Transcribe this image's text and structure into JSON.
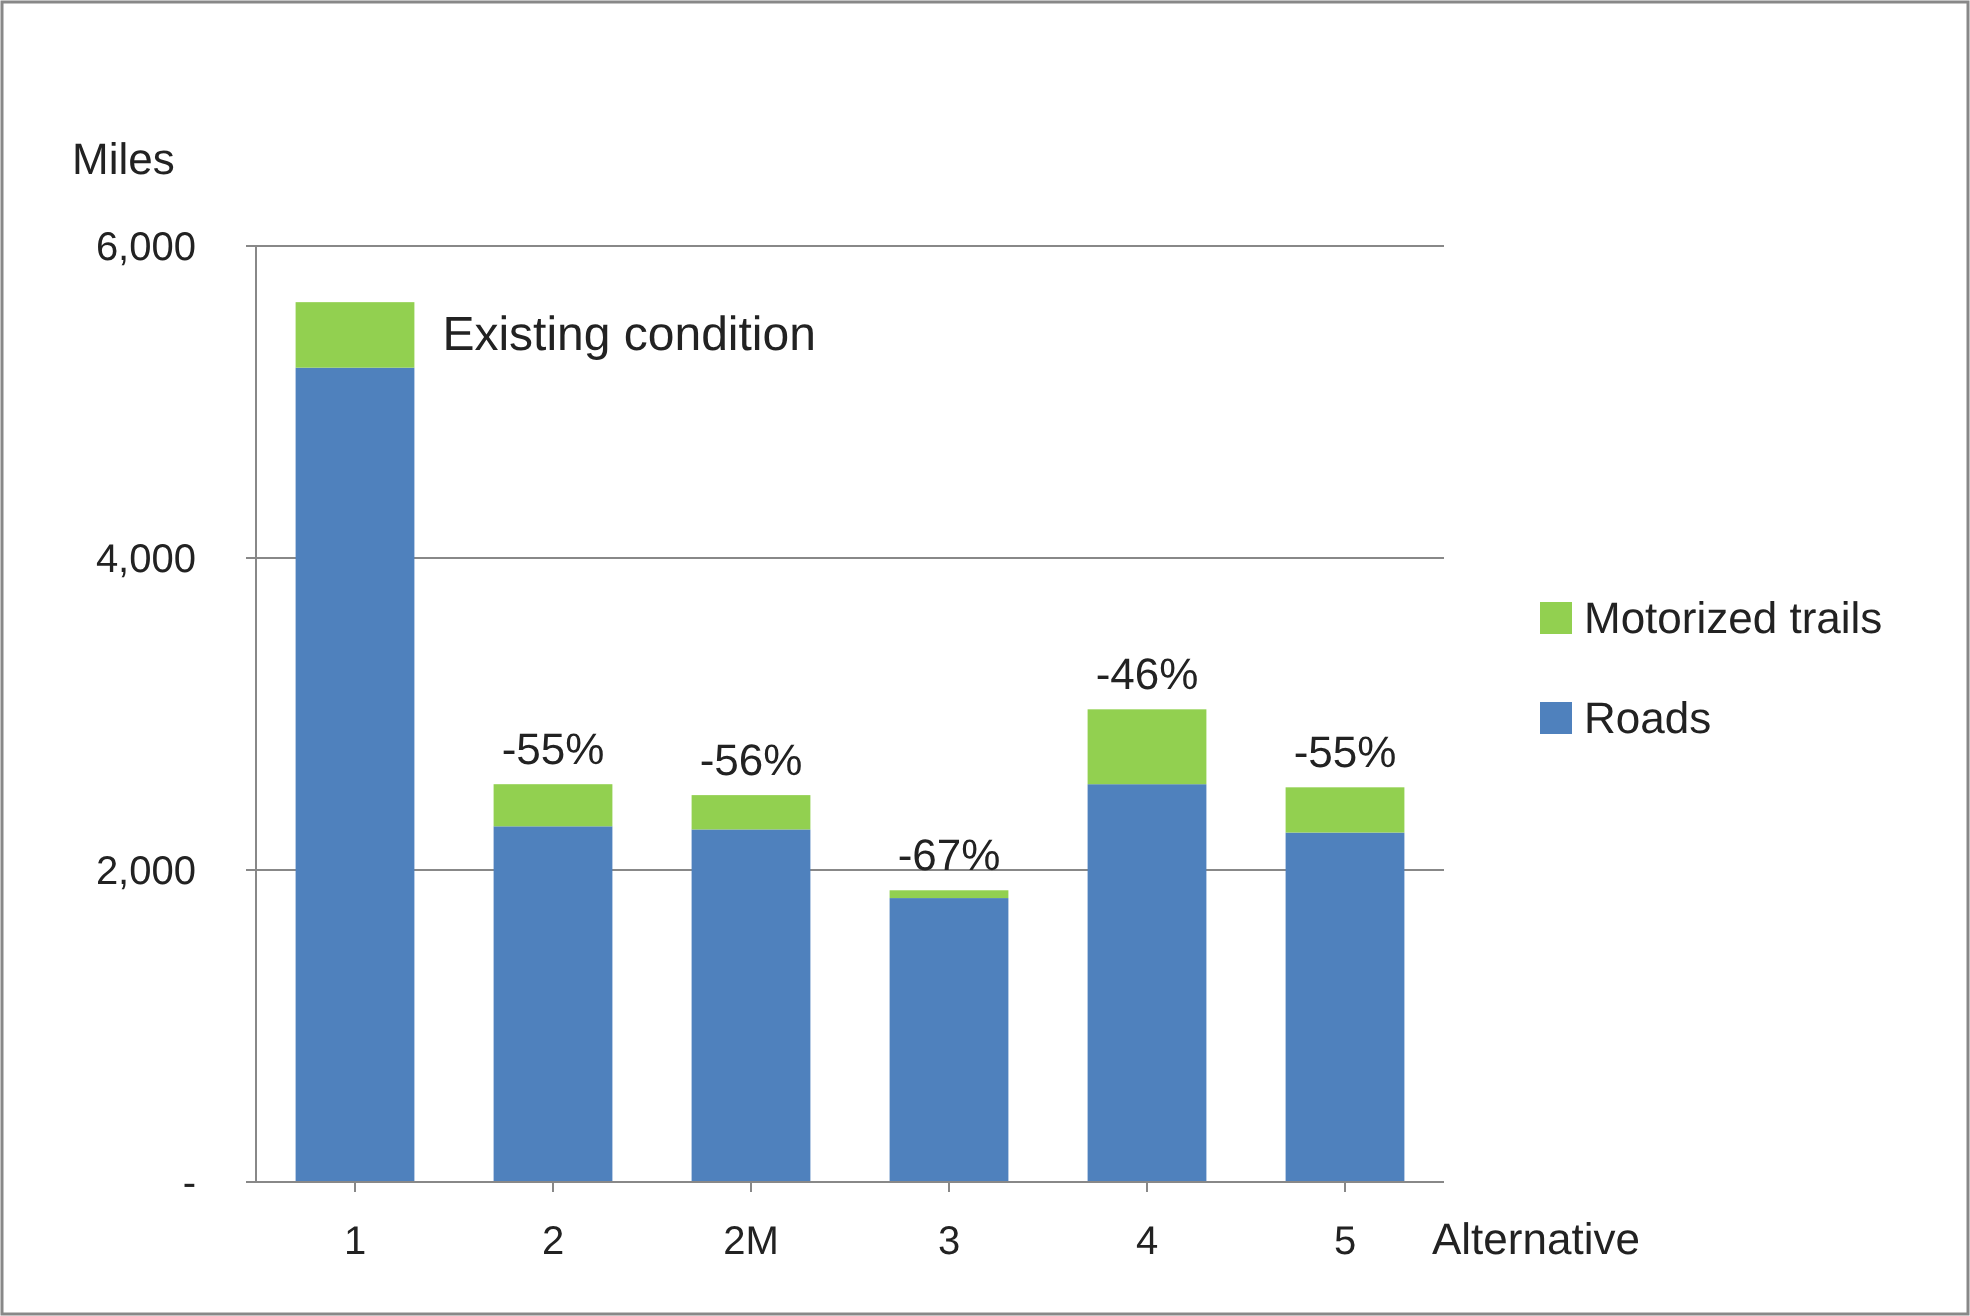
{
  "chart_data": {
    "type": "bar",
    "stacked": true,
    "xlabel": "Alternative",
    "ylabel": "Miles",
    "categories": [
      "1",
      "2",
      "2M",
      "3",
      "4",
      "5"
    ],
    "series": [
      {
        "name": "Roads",
        "color": "#4f81bd",
        "values": [
          5220,
          2280,
          2260,
          1820,
          2550,
          2240
        ]
      },
      {
        "name": "Motorized trails",
        "color": "#92d050",
        "values": [
          420,
          270,
          220,
          50,
          480,
          290
        ]
      }
    ],
    "ylim": [
      0,
      6000
    ],
    "yticks": [
      {
        "value": 0,
        "label": "-"
      },
      {
        "value": 2000,
        "label": "2,000"
      },
      {
        "value": 4000,
        "label": "4,000"
      },
      {
        "value": 6000,
        "label": "6,000"
      }
    ],
    "grid": "y",
    "legend": "right",
    "annotations": [
      {
        "text": "Existing condition",
        "x": "1",
        "y": 5640
      },
      {
        "text": "-55%",
        "x": "2",
        "y": 2550
      },
      {
        "text": "-56%",
        "x": "2M",
        "y": 2480
      },
      {
        "text": "-67%",
        "x": "3",
        "y": 1870
      },
      {
        "text": "-46%",
        "x": "4",
        "y": 3030
      },
      {
        "text": "-55%",
        "x": "5",
        "y": 2530
      }
    ]
  }
}
